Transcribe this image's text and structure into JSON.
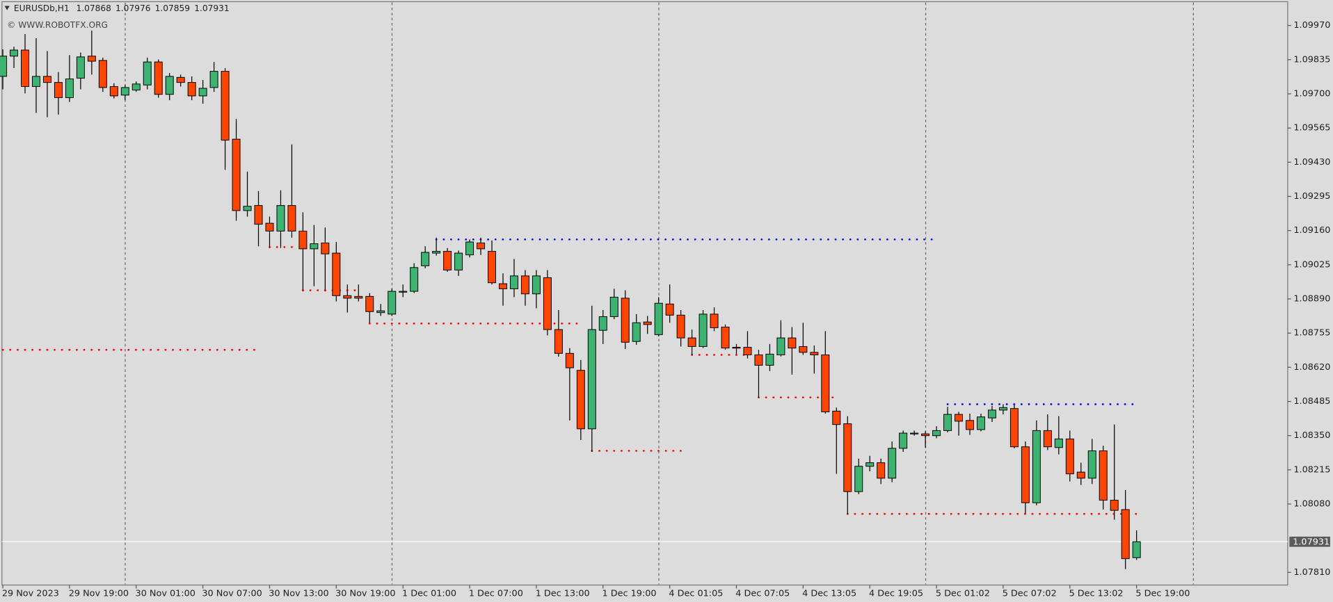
{
  "chart_data": {
    "type": "candlestick",
    "title": "EURUSDb,H1",
    "watermark": "© WWW.ROBOTFX.ORG",
    "up_color": "#3cb371",
    "down_color": "#ff4500",
    "categories": [
      "29 Nov 2023",
      null,
      null,
      null,
      null,
      null,
      "29 Nov 19:00",
      null,
      null,
      null,
      null,
      null,
      "30 Nov 01:00",
      null,
      null,
      null,
      null,
      null,
      "30 Nov 07:00",
      null,
      null,
      null,
      null,
      null,
      "30 Nov 13:00",
      null,
      null,
      null,
      null,
      null,
      "30 Nov 19:00",
      null,
      null,
      null,
      null,
      null,
      "1 Dec 01:00",
      null,
      null,
      null,
      null,
      null,
      "1 Dec 07:00",
      null,
      null,
      null,
      null,
      null,
      "1 Dec 13:00",
      null,
      null,
      null,
      null,
      null,
      "1 Dec 19:00",
      null,
      null,
      null,
      null,
      null,
      "4 Dec 01:05",
      null,
      null,
      null,
      null,
      null,
      "4 Dec 07:05",
      null,
      null,
      null,
      null,
      null,
      "4 Dec 13:05",
      null,
      null,
      null,
      null,
      null,
      "4 Dec 19:05",
      null,
      null,
      null,
      null,
      null,
      "5 Dec 01:02",
      null,
      null,
      null,
      null,
      null,
      "5 Dec 07:02",
      null,
      null,
      null,
      null,
      null,
      "5 Dec 13:02",
      null,
      null,
      null,
      null,
      null,
      "5 Dec 19:00"
    ],
    "open": [
      1.09769,
      1.09849,
      1.09873,
      1.09729,
      1.09769,
      1.09745,
      1.09685,
      1.09762,
      1.09849,
      1.09832,
      1.09729,
      1.09695,
      1.09715,
      1.09735,
      1.09826,
      1.09698,
      1.09765,
      1.09745,
      1.09692,
      1.09725,
      1.09789,
      1.09521,
      1.09239,
      1.09259,
      1.09189,
      1.09158,
      1.09259,
      1.09158,
      1.09088,
      1.09111,
      1.09071,
      1.08903,
      1.089,
      1.089,
      1.08836,
      1.0883,
      1.08917,
      1.0892,
      1.09021,
      1.09071,
      1.09078,
      1.09004,
      1.09064,
      1.09111,
      1.09078,
      1.0895,
      1.0893,
      1.08981,
      1.0891,
      1.08974,
      1.08769,
      1.08675,
      1.08608,
      1.08377,
      1.08766,
      1.0882,
      1.08893,
      1.08722,
      1.08799,
      1.08749,
      1.0887,
      1.08826,
      1.08736,
      1.08702,
      1.0883,
      1.08779,
      1.08699,
      1.08699,
      1.08669,
      1.08628,
      1.08669,
      1.08736,
      1.08702,
      1.08679,
      1.08669,
      1.08447,
      1.08397,
      1.08129,
      1.08229,
      1.08243,
      1.08182,
      1.083,
      1.08357,
      1.08357,
      1.0835,
      1.0837,
      1.08434,
      1.0841,
      1.08374,
      1.0842,
      1.08451,
      1.08457,
      1.08306,
      1.08085,
      1.0837,
      1.08303,
      1.08337,
      1.08206,
      1.08182,
      1.0829,
      1.08095,
      1.08058,
      1.07868
    ],
    "high": [
      1.09876,
      1.09886,
      1.09936,
      1.0992,
      1.09869,
      1.09786,
      1.09853,
      1.09863,
      1.0995,
      1.09843,
      1.09742,
      1.09735,
      1.09749,
      1.09843,
      1.09836,
      1.09782,
      1.09776,
      1.09769,
      1.09755,
      1.09826,
      1.09802,
      1.09601,
      1.09393,
      1.09316,
      1.09215,
      1.09319,
      1.095,
      1.09232,
      1.09182,
      1.09172,
      1.09115,
      1.08947,
      1.08947,
      1.08913,
      1.0887,
      1.0893,
      1.08947,
      1.09031,
      1.09098,
      1.09132,
      1.09091,
      1.09081,
      1.09125,
      1.09132,
      1.09121,
      1.08991,
      1.09048,
      1.09004,
      1.09004,
      1.09004,
      1.08846,
      1.08696,
      1.08649,
      1.08863,
      1.08846,
      1.0893,
      1.08924,
      1.0883,
      1.08823,
      1.08897,
      1.08947,
      1.08846,
      1.08769,
      1.08846,
      1.08857,
      1.08789,
      1.08712,
      1.08763,
      1.08689,
      1.08712,
      1.08806,
      1.08779,
      1.08796,
      1.08706,
      1.08763,
      1.08461,
      1.08427,
      1.08259,
      1.0827,
      1.08259,
      1.08327,
      1.0837,
      1.0837,
      1.08367,
      1.08387,
      1.08464,
      1.08444,
      1.08437,
      1.08437,
      1.08467,
      1.08474,
      1.08471,
      1.08327,
      1.0841,
      1.08434,
      1.08427,
      1.0837,
      1.08243,
      1.08337,
      1.0831,
      1.08394,
      1.08135,
      1.07976
    ],
    "low": [
      1.09718,
      1.09802,
      1.09702,
      1.09625,
      1.09608,
      1.09618,
      1.09668,
      1.09718,
      1.09776,
      1.09708,
      1.09682,
      1.09675,
      1.09708,
      1.09718,
      1.09685,
      1.09675,
      1.09729,
      1.09675,
      1.09661,
      1.09708,
      1.094,
      1.09199,
      1.09215,
      1.09098,
      1.09091,
      1.09091,
      1.09132,
      1.0892,
      1.0894,
      1.0892,
      1.0888,
      1.08836,
      1.0888,
      1.08796,
      1.08823,
      1.08823,
      1.08897,
      1.08913,
      1.09011,
      1.09061,
      1.08997,
      1.08981,
      1.09054,
      1.09064,
      1.08947,
      1.08863,
      1.08897,
      1.08863,
      1.08853,
      1.08746,
      1.08662,
      1.0841,
      1.08333,
      1.08286,
      1.08712,
      1.0881,
      1.08692,
      1.08709,
      1.08752,
      1.08742,
      1.08796,
      1.08702,
      1.08669,
      1.08696,
      1.08763,
      1.08689,
      1.08672,
      1.08655,
      1.08501,
      1.08605,
      1.08662,
      1.08591,
      1.08669,
      1.08595,
      1.08437,
      1.08199,
      1.08041,
      1.08119,
      1.08209,
      1.08159,
      1.08166,
      1.08286,
      1.0835,
      1.08303,
      1.0834,
      1.08363,
      1.0835,
      1.08353,
      1.08367,
      1.08404,
      1.08434,
      1.083,
      1.08041,
      1.08075,
      1.08293,
      1.08276,
      1.08169,
      1.08155,
      1.08159,
      1.08058,
      1.08018,
      1.07823,
      1.07859
    ],
    "close": [
      1.09849,
      1.09873,
      1.09729,
      1.09769,
      1.09745,
      1.09685,
      1.09759,
      1.09846,
      1.09829,
      1.09725,
      1.09692,
      1.09725,
      1.09739,
      1.09826,
      1.09698,
      1.09769,
      1.09745,
      1.09692,
      1.09722,
      1.09789,
      1.09517,
      1.09239,
      1.09256,
      1.09185,
      1.09158,
      1.09259,
      1.09158,
      1.09088,
      1.09108,
      1.09068,
      1.08903,
      1.08893,
      1.08893,
      1.0884,
      1.08843,
      1.0892,
      1.0892,
      1.09014,
      1.09074,
      1.09078,
      1.09004,
      1.09071,
      1.09115,
      1.09088,
      1.08954,
      1.0893,
      1.08981,
      1.0891,
      1.08981,
      1.08769,
      1.08675,
      1.08618,
      1.08377,
      1.08769,
      1.0882,
      1.08897,
      1.08719,
      1.08796,
      1.08789,
      1.08873,
      1.08826,
      1.08736,
      1.08702,
      1.0883,
      1.08776,
      1.08696,
      1.08696,
      1.08669,
      1.08628,
      1.08672,
      1.08736,
      1.08696,
      1.08679,
      1.08669,
      1.08444,
      1.08394,
      1.08129,
      1.08229,
      1.08243,
      1.08182,
      1.083,
      1.0836,
      1.0836,
      1.0835,
      1.0837,
      1.08434,
      1.08407,
      1.08374,
      1.08424,
      1.08451,
      1.08461,
      1.08306,
      1.08085,
      1.0837,
      1.08306,
      1.08337,
      1.08199,
      1.08182,
      1.0829,
      1.08095,
      1.08055,
      1.07864,
      1.07931
    ],
    "ylim": [
      1.0776,
      1.10064
    ],
    "yticks": [
      {
        "value": 1.0997,
        "label": "1.09970"
      },
      {
        "value": 1.09835,
        "label": "1.09835"
      },
      {
        "value": 1.097,
        "label": "1.09700"
      },
      {
        "value": 1.09565,
        "label": "1.09565"
      },
      {
        "value": 1.0943,
        "label": "1.09430"
      },
      {
        "value": 1.09295,
        "label": "1.09295"
      },
      {
        "value": 1.0916,
        "label": "1.09160"
      },
      {
        "value": 1.09025,
        "label": "1.09025"
      },
      {
        "value": 1.0889,
        "label": "1.08890"
      },
      {
        "value": 1.08755,
        "label": "1.08755"
      },
      {
        "value": 1.0862,
        "label": "1.08620"
      },
      {
        "value": 1.08485,
        "label": "1.08485"
      },
      {
        "value": 1.0835,
        "label": "1.08350"
      },
      {
        "value": 1.08215,
        "label": "1.08215"
      },
      {
        "value": 1.0808,
        "label": "1.08080"
      },
      {
        "value": 1.0781,
        "label": "1.07810"
      }
    ],
    "levels": [
      {
        "value": 1.08689,
        "start": 0,
        "end": 23,
        "color": "#ff0000"
      },
      {
        "value": 1.09095,
        "start": 24,
        "end": 26,
        "color": "#ff0000"
      },
      {
        "value": 1.08924,
        "start": 27,
        "end": 32,
        "color": "#ff0000"
      },
      {
        "value": 1.08793,
        "start": 33,
        "end": 52,
        "color": "#ff0000"
      },
      {
        "value": 1.09125,
        "start": 39,
        "end": 84,
        "color": "#0000ff"
      },
      {
        "value": 1.0829,
        "start": 53,
        "end": 61,
        "color": "#ff0000"
      },
      {
        "value": 1.08669,
        "start": 62,
        "end": 67,
        "color": "#ff0000"
      },
      {
        "value": 1.08501,
        "start": 68,
        "end": 75,
        "color": "#ff0000"
      },
      {
        "value": 1.08041,
        "start": 76,
        "end": 102,
        "color": "#ff0000"
      },
      {
        "value": 1.08474,
        "start": 85,
        "end": 102,
        "color": "#0000ff"
      }
    ]
  }
}
